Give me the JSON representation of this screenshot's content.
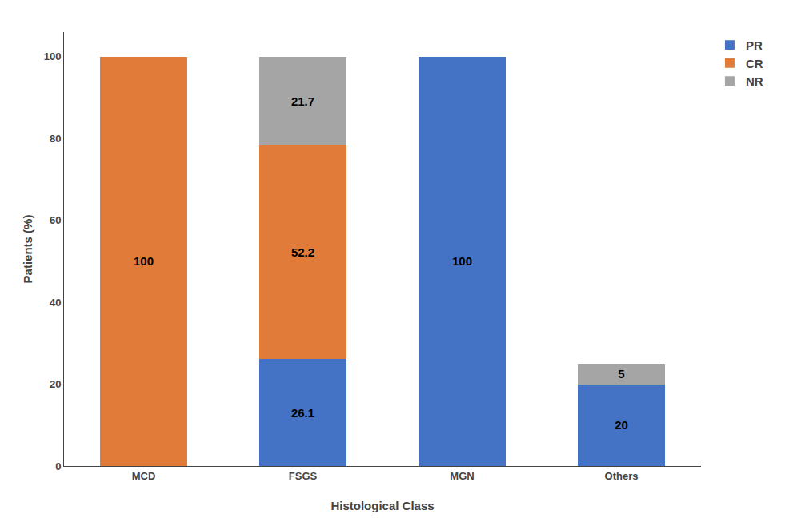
{
  "chart_data": {
    "type": "bar",
    "stacked": true,
    "categories": [
      "MCD",
      "FSGS",
      "MGN",
      "Others"
    ],
    "series": [
      {
        "name": "PR",
        "color": "#4472C4",
        "values": [
          0,
          26.1,
          100,
          20
        ]
      },
      {
        "name": "CR",
        "color": "#E07B39",
        "values": [
          100,
          52.2,
          0,
          0
        ]
      },
      {
        "name": "NR",
        "color": "#A5A5A5",
        "values": [
          0,
          21.7,
          0,
          5
        ]
      }
    ],
    "xlabel": "Histological Class",
    "ylabel": "Patients (%)",
    "ylim": [
      0,
      106
    ],
    "yticks": [
      0,
      20,
      40,
      60,
      80,
      100
    ],
    "grid": false,
    "legend": "upper right",
    "data_labels": true
  }
}
